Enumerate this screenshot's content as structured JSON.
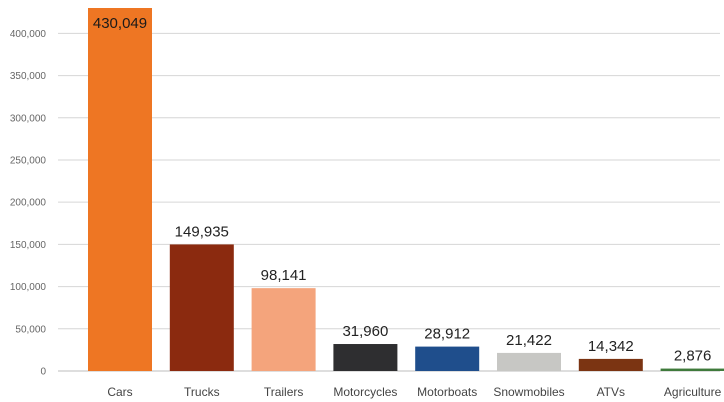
{
  "chart_data": {
    "type": "bar",
    "title": "",
    "xlabel": "",
    "ylabel": "",
    "ylim": [
      0,
      430049
    ],
    "y_ticks": [
      0,
      50000,
      100000,
      150000,
      200000,
      250000,
      300000,
      350000,
      400000
    ],
    "y_tick_labels": [
      "0",
      "50,000",
      "100,000",
      "150,000",
      "200,000",
      "250,000",
      "300,000",
      "350,000",
      "400,000"
    ],
    "grid": true,
    "legend": "none",
    "categories": [
      "Cars",
      "Trucks",
      "Trailers",
      "Motorcycles",
      "Motorboats",
      "Snowmobiles",
      "ATVs",
      "Agriculture"
    ],
    "values": [
      430049,
      149935,
      98141,
      31960,
      28912,
      21422,
      14342,
      2876
    ],
    "value_labels": [
      "430,049",
      "149,935",
      "98,141",
      "31,960",
      "28,912",
      "21,422",
      "14,342",
      "2,876"
    ],
    "colors": [
      "#ee7623",
      "#8b2a0f",
      "#f4a47c",
      "#2e2e30",
      "#1f4e8c",
      "#c7c7c4",
      "#7b3412",
      "#3f7a3b"
    ]
  }
}
